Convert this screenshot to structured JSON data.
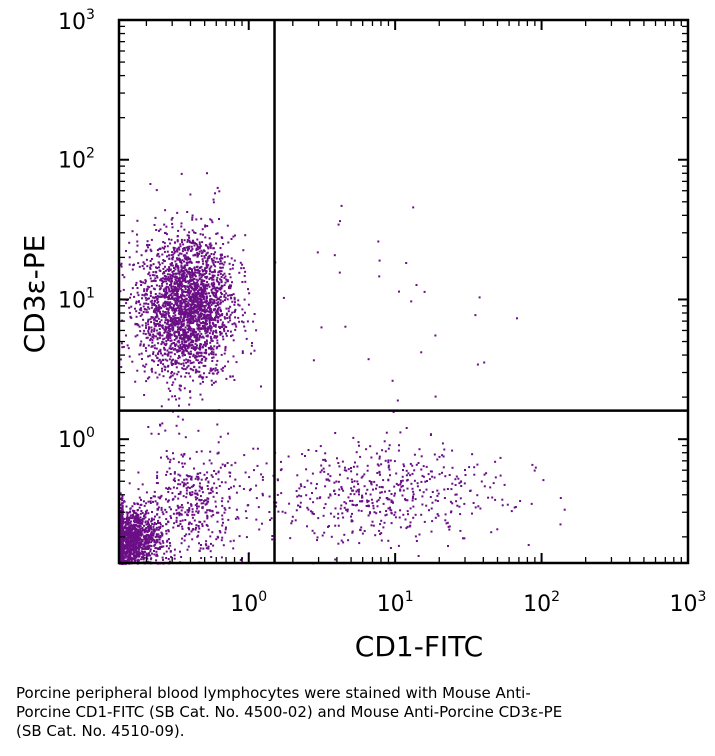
{
  "chart_data": {
    "type": "scatter",
    "title": "",
    "xlabel": "CD1-FITC",
    "ylabel": "CD3ε-PE",
    "x_scale": "log",
    "y_scale": "log",
    "xlim": [
      0.13,
      1000
    ],
    "ylim": [
      0.13,
      1000
    ],
    "x_ticks": [
      {
        "base": "10",
        "exp": "0",
        "value": 1
      },
      {
        "base": "10",
        "exp": "1",
        "value": 10
      },
      {
        "base": "10",
        "exp": "2",
        "value": 100
      },
      {
        "base": "10",
        "exp": "3",
        "value": 1000
      }
    ],
    "y_ticks": [
      {
        "base": "10",
        "exp": "0",
        "value": 1
      },
      {
        "base": "10",
        "exp": "1",
        "value": 10
      },
      {
        "base": "10",
        "exp": "2",
        "value": 100
      },
      {
        "base": "10",
        "exp": "3",
        "value": 1000
      }
    ],
    "quadrant_gates": {
      "x": 1.5,
      "y": 1.6
    },
    "grid": false,
    "point_color": "#6b0f86",
    "populations": [
      {
        "description": "CD3+ CD1- cluster",
        "center": [
          0.37,
          9.0
        ],
        "spread_log10": [
          0.16,
          0.25
        ],
        "count": 2600
      },
      {
        "description": "CD3- CD1- cluster",
        "center": [
          0.15,
          0.2
        ],
        "spread_log10": [
          0.1,
          0.1
        ],
        "count": 1400
      },
      {
        "description": "CD3- low smear",
        "center": [
          0.4,
          0.35
        ],
        "spread_log10": [
          0.18,
          0.2
        ],
        "count": 450
      },
      {
        "description": "CD3- CD1+ cluster",
        "center": [
          8.0,
          0.42
        ],
        "spread_log10": [
          0.42,
          0.18
        ],
        "count": 550
      },
      {
        "description": "sparse CD3+ CD1+ events",
        "center": [
          8.0,
          10.0
        ],
        "spread_log10": [
          0.5,
          0.4
        ],
        "count": 30
      }
    ]
  },
  "caption": {
    "lines": [
      "Porcine peripheral blood lymphocytes were stained with Mouse Anti-",
      "Porcine CD1-FITC (SB Cat. No. 4500-02) and Mouse Anti-Porcine CD3ε-PE",
      "(SB Cat. No. 4510-09)."
    ]
  }
}
